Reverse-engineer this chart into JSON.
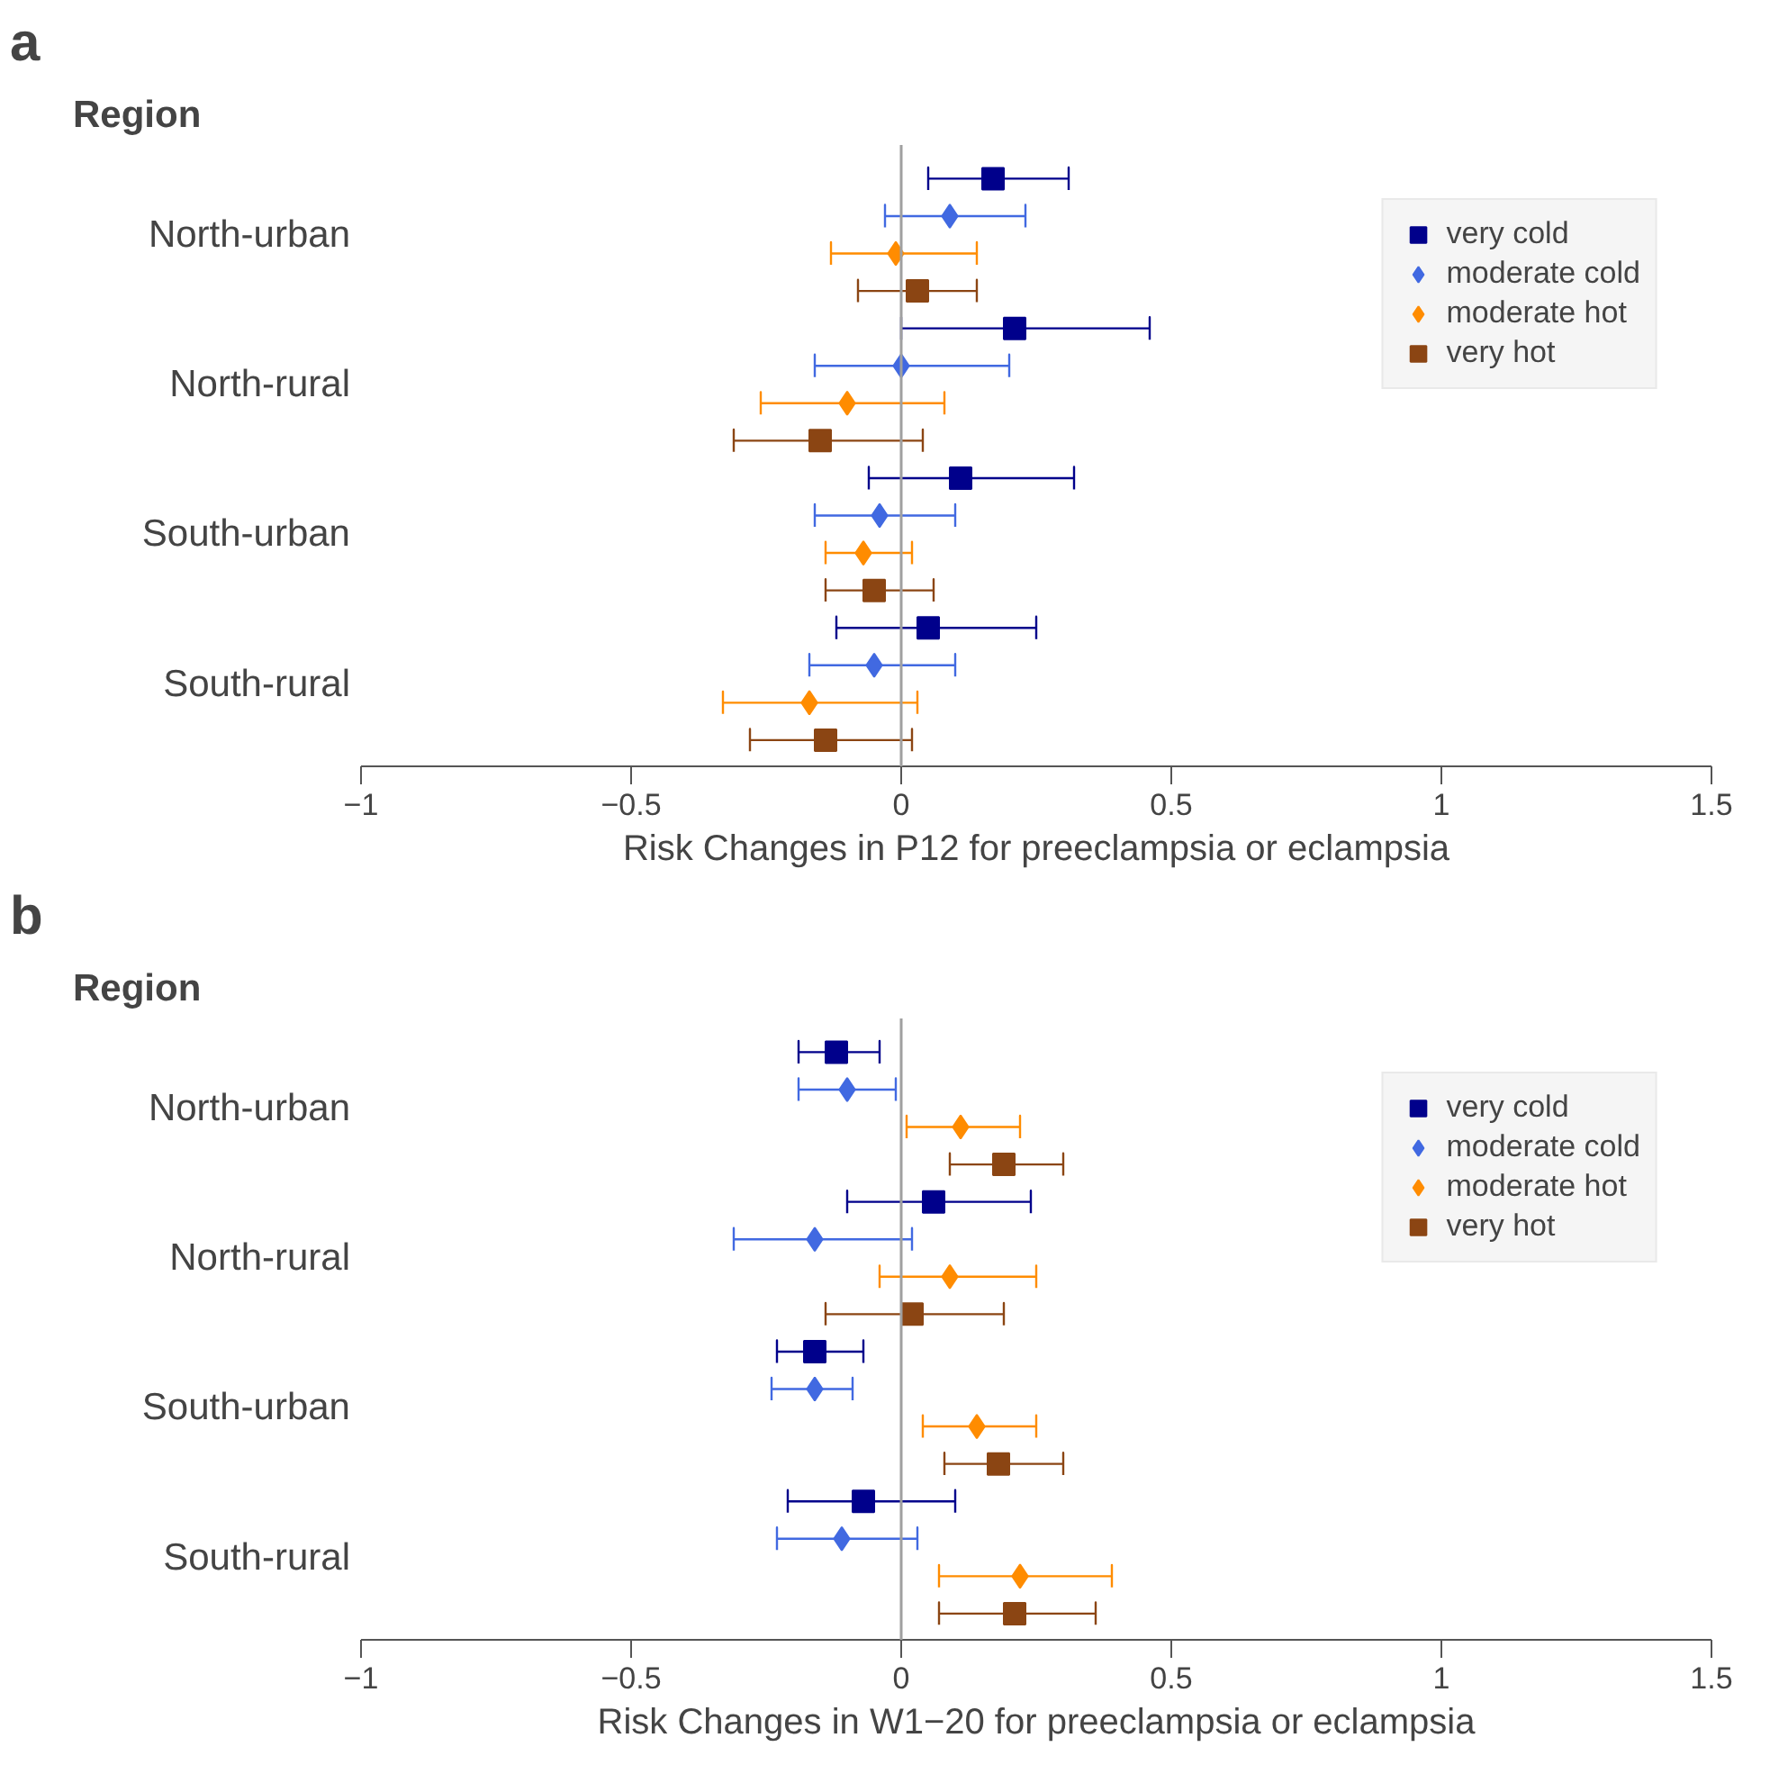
{
  "chart_data": [
    {
      "type": "scatter",
      "orientation": "horizontal",
      "title": "a",
      "ylabel": "Region",
      "xlabel": "Risk Changes in P12 for preeclampsia or eclampsia",
      "categories": [
        "North-urban",
        "North-rural",
        "South-urban",
        "South-rural"
      ],
      "xlim": [
        -1,
        1.5
      ],
      "xticks": [
        -1,
        -0.5,
        0,
        0.5,
        1,
        1.5
      ],
      "grid": false,
      "legend": "top right",
      "ref_lines": [
        {
          "axis": "x",
          "value": 0,
          "color": "#a0a0a0"
        }
      ],
      "series": [
        {
          "name": "very cold",
          "color": "#00008b",
          "marker": "square",
          "values": [
            0.17,
            0.21,
            0.11,
            0.05
          ],
          "errors": [
            [
              0.05,
              0.31
            ],
            [
              0.0,
              0.46
            ],
            [
              -0.06,
              0.32
            ],
            [
              -0.12,
              0.25
            ]
          ]
        },
        {
          "name": "moderate cold",
          "color": "#4169e1",
          "marker": "diamond",
          "values": [
            0.09,
            0.0,
            -0.04,
            -0.05
          ],
          "errors": [
            [
              -0.03,
              0.23
            ],
            [
              -0.16,
              0.2
            ],
            [
              -0.16,
              0.1
            ],
            [
              -0.17,
              0.1
            ]
          ]
        },
        {
          "name": "moderate hot",
          "color": "#ff8c00",
          "marker": "diamond",
          "values": [
            -0.01,
            -0.1,
            -0.07,
            -0.17
          ],
          "errors": [
            [
              -0.13,
              0.14
            ],
            [
              -0.26,
              0.08
            ],
            [
              -0.14,
              0.02
            ],
            [
              -0.33,
              0.03
            ]
          ]
        },
        {
          "name": "very hot",
          "color": "#8b4513",
          "marker": "square",
          "values": [
            0.03,
            -0.15,
            -0.05,
            -0.14
          ],
          "errors": [
            [
              -0.08,
              0.14
            ],
            [
              -0.31,
              0.04
            ],
            [
              -0.14,
              0.06
            ],
            [
              -0.28,
              0.02
            ]
          ]
        }
      ]
    },
    {
      "type": "scatter",
      "orientation": "horizontal",
      "title": "b",
      "ylabel": "Region",
      "xlabel": "Risk Changes in W1−20 for preeclampsia or eclampsia",
      "categories": [
        "North-urban",
        "North-rural",
        "South-urban",
        "South-rural"
      ],
      "xlim": [
        -1,
        1.5
      ],
      "xticks": [
        -1,
        -0.5,
        0,
        0.5,
        1,
        1.5
      ],
      "grid": false,
      "legend": "top right",
      "ref_lines": [
        {
          "axis": "x",
          "value": 0,
          "color": "#a0a0a0"
        }
      ],
      "series": [
        {
          "name": "very cold",
          "color": "#00008b",
          "marker": "square",
          "values": [
            -0.12,
            0.06,
            -0.16,
            -0.07
          ],
          "errors": [
            [
              -0.19,
              -0.04
            ],
            [
              -0.1,
              0.24
            ],
            [
              -0.23,
              -0.07
            ],
            [
              -0.21,
              0.1
            ]
          ]
        },
        {
          "name": "moderate cold",
          "color": "#4169e1",
          "marker": "diamond",
          "values": [
            -0.1,
            -0.16,
            -0.16,
            -0.11
          ],
          "errors": [
            [
              -0.19,
              -0.01
            ],
            [
              -0.31,
              0.02
            ],
            [
              -0.24,
              -0.09
            ],
            [
              -0.23,
              0.03
            ]
          ]
        },
        {
          "name": "moderate hot",
          "color": "#ff8c00",
          "marker": "diamond",
          "values": [
            0.11,
            0.09,
            0.14,
            0.22
          ],
          "errors": [
            [
              0.01,
              0.22
            ],
            [
              -0.04,
              0.25
            ],
            [
              0.04,
              0.25
            ],
            [
              0.07,
              0.39
            ]
          ]
        },
        {
          "name": "very hot",
          "color": "#8b4513",
          "marker": "square",
          "values": [
            0.19,
            0.02,
            0.18,
            0.21
          ],
          "errors": [
            [
              0.09,
              0.3
            ],
            [
              -0.14,
              0.19
            ],
            [
              0.08,
              0.3
            ],
            [
              0.07,
              0.36
            ]
          ]
        }
      ]
    }
  ]
}
